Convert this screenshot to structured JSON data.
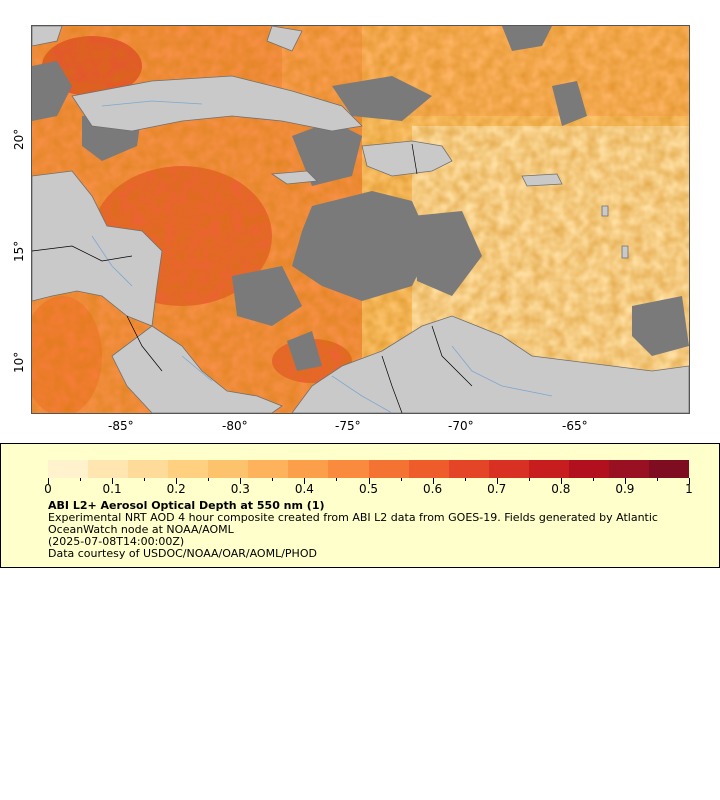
{
  "map": {
    "x_ticks": [
      "-85°",
      "-80°",
      "-75°",
      "-70°",
      "-65°"
    ],
    "y_ticks": [
      "20°",
      "15°",
      "10°"
    ],
    "colors": {
      "land": "#c9c9c9",
      "no_data": "#7a7a7a",
      "coast": "#6f6f6f",
      "rivers": "#7fa7cf",
      "border": "#000000"
    }
  },
  "legend": {
    "title": "ABI L2+ Aerosol Optical Depth at 550 nm (1)",
    "line1": "Experimental NRT AOD 4 hour composite created from ABI L2 data from GOES-19. Fields generated by Atlantic",
    "line2": "OceanWatch node at NOAA/AOML",
    "line3": "(2025-07-08T14:00:00Z)",
    "line4": "Data courtesy of USDOC/NOAA/OAR/AOML/PHOD",
    "scale_labels": [
      "0",
      "0.1",
      "0.2",
      "0.3",
      "0.4",
      "0.5",
      "0.6",
      "0.7",
      "0.8",
      "0.9",
      "1"
    ],
    "scale_range": [
      0,
      1
    ],
    "colorbar": [
      "#fff2cc",
      "#ffe6b0",
      "#fedb98",
      "#fed080",
      "#fdc36c",
      "#fdb25b",
      "#fc9f4b",
      "#fa8a3d",
      "#f57332",
      "#ee5c2b",
      "#e44526",
      "#d83022",
      "#c71d1f",
      "#b2101f",
      "#981021",
      "#7f0d22"
    ]
  }
}
